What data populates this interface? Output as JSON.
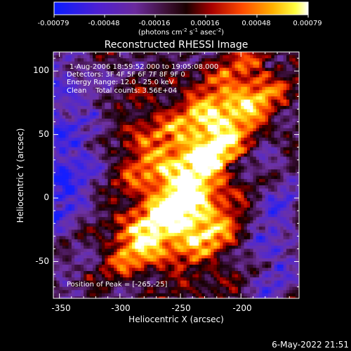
{
  "chart_data": {
    "type": "heatmap",
    "title": "Reconstructed RHESSI Image",
    "xlabel": "Heliocentric X (arcsec)",
    "ylabel": "Heliocentric Y (arcsec)",
    "xlim": [
      -355,
      -152
    ],
    "ylim": [
      -79,
      115
    ],
    "xticks": [
      -350,
      -300,
      -250,
      -200
    ],
    "yticks": [
      -50,
      0,
      50,
      100
    ],
    "colorbar": {
      "ticks": [
        "-0.00079",
        "-0.00048",
        "-0.00016",
        "0.00016",
        "0.00048",
        "0.00079"
      ],
      "range": [
        -0.00079,
        0.00079
      ],
      "units_prefix": "(photons cm",
      "units_sup1": "-2",
      "units_mid": " s",
      "units_sup2": "-1",
      "units_end": " asec",
      "units_sup3": "-2",
      "units_close": ")"
    },
    "annotations": [
      "1-Aug-2006 18:59:52.000 to 19:05:08.000",
      "Detectors: 3F 4F 5F 6F 7F 8F 9F 0",
      "Energy Range: 12.0 - 25.0 keV",
      "Clean    Total counts: 3.56E+04"
    ],
    "peak_label": "Position of Peak = [-265,-25]",
    "bright_region_center": [
      -258,
      15
    ],
    "peak_position": [
      -265,
      -25
    ]
  },
  "timestamp": "6-May-2022 21:51"
}
